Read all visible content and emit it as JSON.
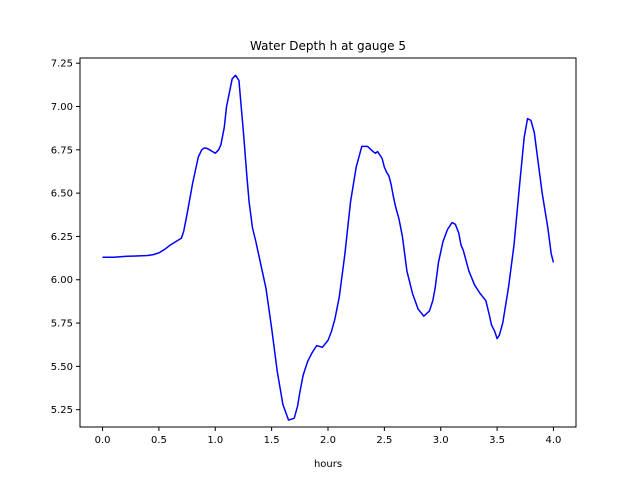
{
  "chart_data": {
    "type": "line",
    "title": "Water Depth h at gauge 5",
    "xlabel": "hours",
    "ylabel": "",
    "xlim": [
      -0.2,
      4.2
    ],
    "ylim": [
      5.15,
      7.28
    ],
    "x_ticks": [
      0.0,
      0.5,
      1.0,
      1.5,
      2.0,
      2.5,
      3.0,
      3.5,
      4.0
    ],
    "x_tick_labels": [
      "0.0",
      "0.5",
      "1.0",
      "1.5",
      "2.0",
      "2.5",
      "3.0",
      "3.5",
      "4.0"
    ],
    "y_ticks": [
      5.25,
      5.5,
      5.75,
      6.0,
      6.25,
      6.5,
      6.75,
      7.0,
      7.25
    ],
    "y_tick_labels": [
      "5.25",
      "5.50",
      "5.75",
      "6.00",
      "6.25",
      "6.50",
      "6.75",
      "7.00",
      "7.25"
    ],
    "grid": false,
    "series": [
      {
        "color": "#0000ff",
        "x": [
          0.0,
          0.1,
          0.2,
          0.3,
          0.4,
          0.45,
          0.5,
          0.55,
          0.6,
          0.65,
          0.7,
          0.72,
          0.75,
          0.8,
          0.85,
          0.88,
          0.9,
          0.92,
          0.95,
          1.0,
          1.03,
          1.05,
          1.08,
          1.1,
          1.15,
          1.18,
          1.21,
          1.23,
          1.25,
          1.28,
          1.3,
          1.33,
          1.36,
          1.4,
          1.45,
          1.5,
          1.55,
          1.6,
          1.65,
          1.7,
          1.73,
          1.75,
          1.78,
          1.82,
          1.86,
          1.9,
          1.95,
          2.0,
          2.03,
          2.06,
          2.1,
          2.15,
          2.2,
          2.25,
          2.3,
          2.35,
          2.4,
          2.42,
          2.44,
          2.46,
          2.48,
          2.5,
          2.52,
          2.54,
          2.56,
          2.58,
          2.6,
          2.63,
          2.66,
          2.7,
          2.75,
          2.8,
          2.85,
          2.9,
          2.93,
          2.95,
          2.98,
          3.02,
          3.06,
          3.1,
          3.13,
          3.16,
          3.18,
          3.2,
          3.25,
          3.3,
          3.35,
          3.4,
          3.43,
          3.45,
          3.48,
          3.5,
          3.52,
          3.55,
          3.6,
          3.65,
          3.7,
          3.74,
          3.77,
          3.8,
          3.83,
          3.86,
          3.9,
          3.95,
          3.98,
          4.0
        ],
        "y": [
          6.13,
          6.13,
          6.135,
          6.137,
          6.14,
          6.145,
          6.155,
          6.175,
          6.2,
          6.22,
          6.24,
          6.28,
          6.38,
          6.56,
          6.71,
          6.75,
          6.76,
          6.76,
          6.75,
          6.73,
          6.75,
          6.78,
          6.88,
          7.0,
          7.16,
          7.18,
          7.15,
          7.0,
          6.85,
          6.6,
          6.45,
          6.3,
          6.22,
          6.1,
          5.95,
          5.72,
          5.47,
          5.28,
          5.19,
          5.2,
          5.27,
          5.35,
          5.45,
          5.53,
          5.58,
          5.62,
          5.61,
          5.65,
          5.7,
          5.77,
          5.9,
          6.15,
          6.45,
          6.65,
          6.77,
          6.77,
          6.74,
          6.73,
          6.74,
          6.72,
          6.7,
          6.65,
          6.62,
          6.6,
          6.55,
          6.48,
          6.42,
          6.35,
          6.25,
          6.05,
          5.92,
          5.83,
          5.79,
          5.82,
          5.88,
          5.95,
          6.1,
          6.22,
          6.29,
          6.33,
          6.32,
          6.27,
          6.2,
          6.17,
          6.05,
          5.97,
          5.92,
          5.88,
          5.8,
          5.74,
          5.7,
          5.66,
          5.68,
          5.75,
          5.95,
          6.2,
          6.55,
          6.82,
          6.93,
          6.92,
          6.85,
          6.7,
          6.5,
          6.3,
          6.15,
          6.1
        ]
      }
    ]
  }
}
